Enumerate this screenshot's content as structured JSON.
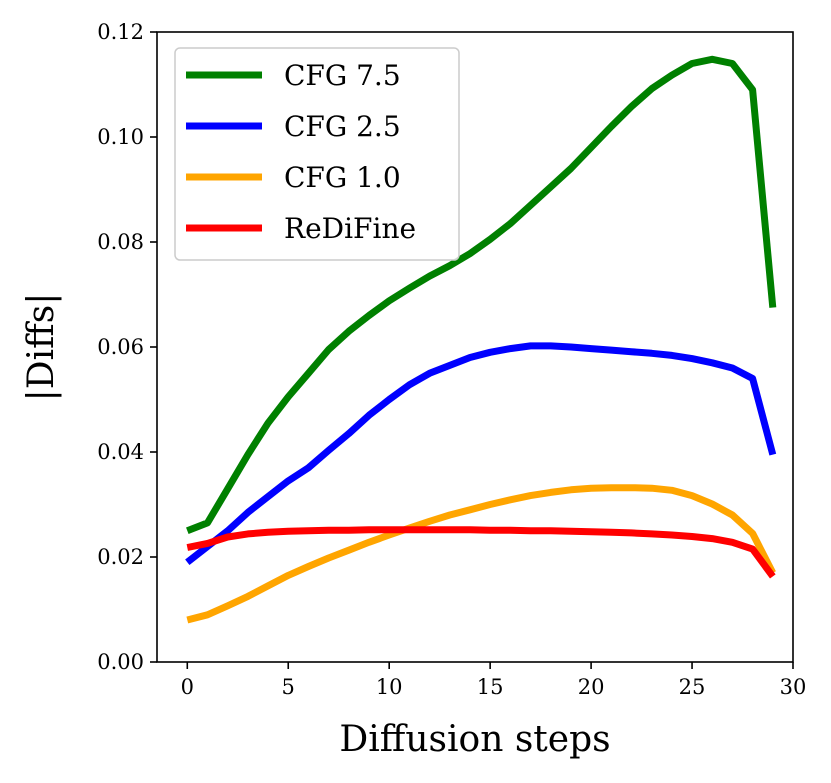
{
  "chart_data": {
    "type": "line",
    "title": "",
    "xlabel": "Diffusion steps",
    "ylabel": "|Diffs|",
    "xlim": [
      -1.5,
      30
    ],
    "ylim": [
      0,
      0.12
    ],
    "xticks": [
      0,
      5,
      10,
      15,
      20,
      25,
      30
    ],
    "xtick_labels": [
      "0",
      "5",
      "10",
      "15",
      "20",
      "25",
      "30"
    ],
    "yticks": [
      0,
      0.02,
      0.04,
      0.06,
      0.08,
      0.1,
      0.12
    ],
    "ytick_labels": [
      "0.00",
      "0.02",
      "0.04",
      "0.06",
      "0.08",
      "0.10",
      "0.12"
    ],
    "legend_position": "top-left",
    "grid": false,
    "x": [
      0,
      1,
      2,
      3,
      4,
      5,
      6,
      7,
      8,
      9,
      10,
      11,
      12,
      13,
      14,
      15,
      16,
      17,
      18,
      19,
      20,
      21,
      22,
      23,
      24,
      25,
      26,
      27,
      28,
      29
    ],
    "series": [
      {
        "name": "CFG 7.5",
        "color": "#008000",
        "values": [
          0.025,
          0.0265,
          0.033,
          0.0395,
          0.0455,
          0.0505,
          0.055,
          0.0595,
          0.063,
          0.066,
          0.0688,
          0.0712,
          0.0735,
          0.0755,
          0.0778,
          0.0805,
          0.0835,
          0.087,
          0.0905,
          0.094,
          0.098,
          0.102,
          0.1058,
          0.1092,
          0.1118,
          0.114,
          0.1148,
          0.114,
          0.109,
          0.0675
        ]
      },
      {
        "name": "CFG 2.5",
        "color": "#0000ff",
        "values": [
          0.019,
          0.022,
          0.025,
          0.0285,
          0.0315,
          0.0345,
          0.037,
          0.0403,
          0.0435,
          0.047,
          0.05,
          0.0528,
          0.055,
          0.0565,
          0.058,
          0.059,
          0.0597,
          0.0602,
          0.0602,
          0.06,
          0.0597,
          0.0594,
          0.0591,
          0.0588,
          0.0584,
          0.0578,
          0.057,
          0.056,
          0.054,
          0.0395
        ]
      },
      {
        "name": "CFG 1.0",
        "color": "#ffa500",
        "values": [
          0.008,
          0.009,
          0.0107,
          0.0125,
          0.0145,
          0.0165,
          0.0182,
          0.0198,
          0.0213,
          0.0228,
          0.0242,
          0.0255,
          0.0268,
          0.028,
          0.029,
          0.03,
          0.0309,
          0.0317,
          0.0323,
          0.0328,
          0.0331,
          0.0332,
          0.0332,
          0.0331,
          0.0327,
          0.0317,
          0.0301,
          0.028,
          0.0245,
          0.017
        ]
      },
      {
        "name": "ReDiFine",
        "color": "#ff0000",
        "values": [
          0.0218,
          0.0226,
          0.0238,
          0.0244,
          0.0247,
          0.0249,
          0.025,
          0.0251,
          0.0251,
          0.0252,
          0.0252,
          0.0252,
          0.0252,
          0.0252,
          0.0252,
          0.0251,
          0.0251,
          0.025,
          0.025,
          0.0249,
          0.0248,
          0.0247,
          0.0246,
          0.0244,
          0.0242,
          0.0239,
          0.0235,
          0.0228,
          0.0215,
          0.0163
        ]
      }
    ]
  }
}
